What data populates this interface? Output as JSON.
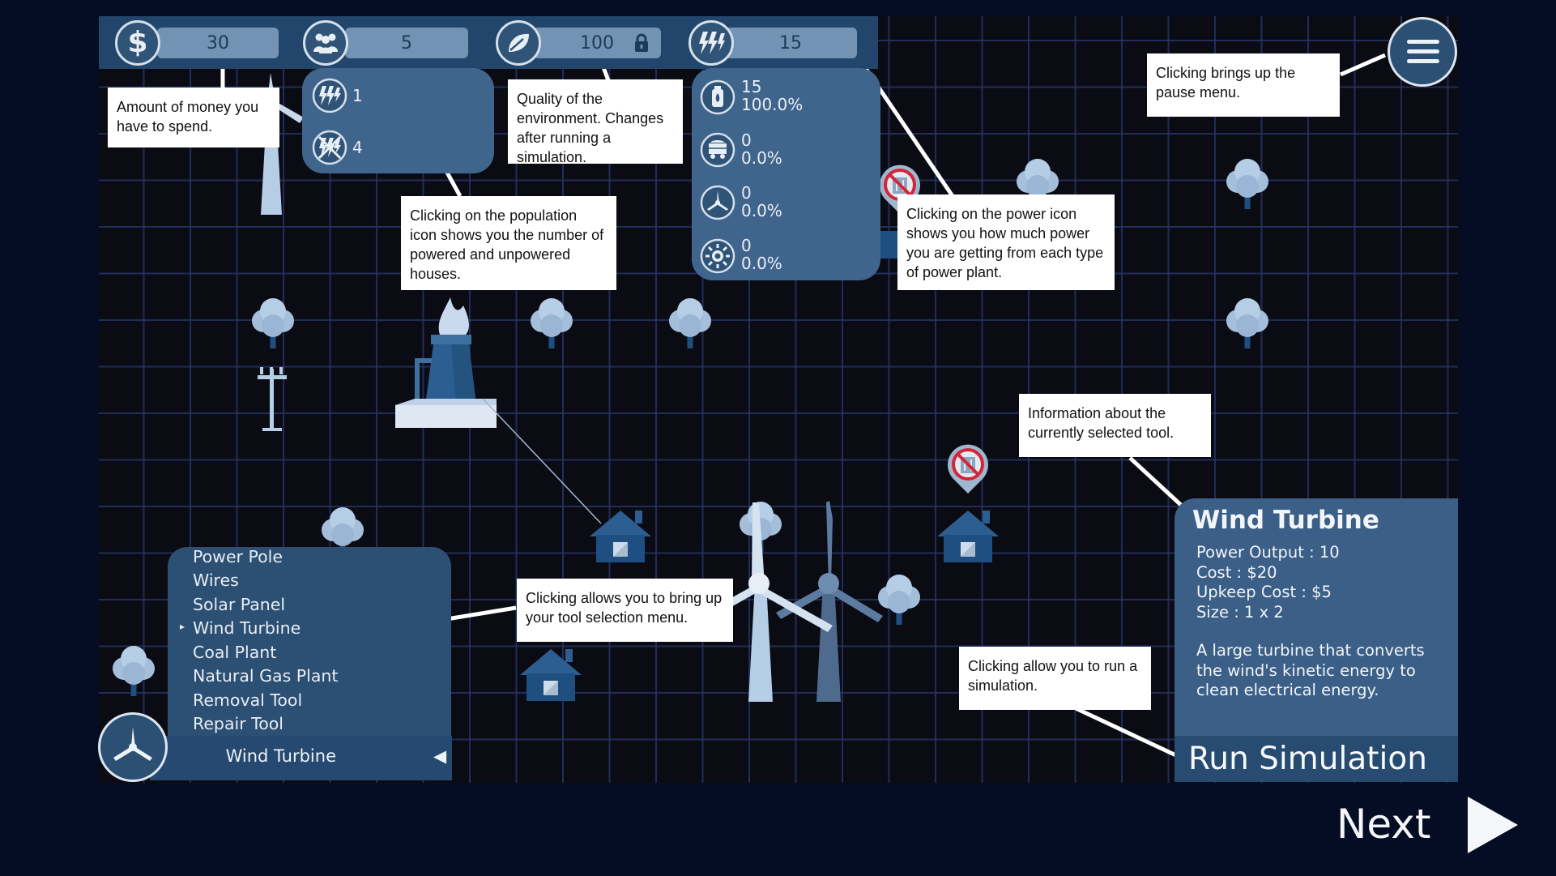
{
  "resources": {
    "money": "30",
    "population": "5",
    "environment": "100",
    "power": "15"
  },
  "population_panel": {
    "powered": "1",
    "unpowered": "4"
  },
  "power_panel": [
    {
      "icon": "gas-canister-icon",
      "amount": "15",
      "percent": "100.0%"
    },
    {
      "icon": "coal-cart-icon",
      "amount": "0",
      "percent": "0.0%"
    },
    {
      "icon": "wind-turbine-icon",
      "amount": "0",
      "percent": "0.0%"
    },
    {
      "icon": "sun-icon",
      "amount": "0",
      "percent": "0.0%"
    }
  ],
  "callouts": {
    "money": "Amount of money you have to spend.",
    "population": "Clicking on the population icon shows you the number of powered and unpowered houses.",
    "environment": "Quality of the environment. Changes after running a simulation.",
    "power": "Clicking on the power icon shows you how much power you are getting from each type of power plant.",
    "pause": "Clicking brings up the pause menu.",
    "tool_info": "Information about the currently selected tool.",
    "tool_menu": "Clicking allows you to bring up your tool selection menu.",
    "simulation": "Clicking allow you to run a simulation."
  },
  "tool_menu": {
    "items": [
      "Power Pole",
      "Wires",
      "Solar Panel",
      "Wind Turbine",
      "Coal Plant",
      "Natural Gas Plant",
      "Removal Tool",
      "Repair Tool"
    ],
    "selected_marker": "▸",
    "selected_index": 3,
    "current_tool": "Wind Turbine",
    "collapse_arrow": "◀"
  },
  "tool_info": {
    "title": "Wind Turbine",
    "power_output": "Power Output : 10",
    "cost": "Cost : $20",
    "upkeep": "Upkeep Cost : $5",
    "size": "Size : 1 x 2",
    "description": "A large turbine that converts the wind's kinetic energy to clean electrical energy."
  },
  "run_simulation_label": "Run Simulation",
  "next_label": "Next",
  "colors": {
    "background": "#040d24",
    "board": "#0b0b14",
    "grid": "#28376e",
    "panel": "#40658c",
    "toolbar": "#254970",
    "pill": "#7293b3",
    "callout": "#ffffff",
    "building_light": "#a9c3df",
    "building_dark": "#1d4f80",
    "warning_red": "#d22638"
  }
}
